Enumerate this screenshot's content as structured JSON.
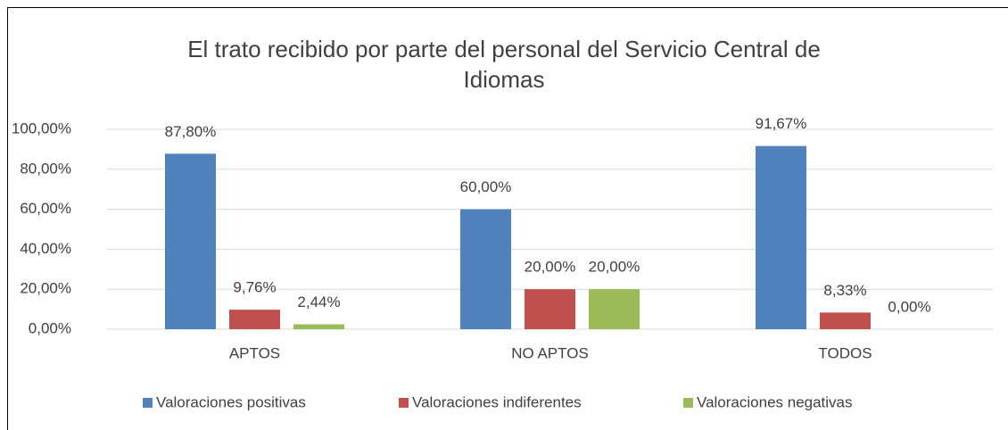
{
  "chart_data": {
    "type": "bar",
    "title": "El trato recibido por parte del personal del Servicio Central de Idiomas",
    "categories": [
      "APTOS",
      "NO APTOS",
      "TODOS"
    ],
    "series": [
      {
        "name": "Valoraciones positivas",
        "color": "#4f81bd",
        "values": [
          87.8,
          60.0,
          91.67
        ],
        "value_labels": [
          "87,80%",
          "60,00%",
          "91,67%"
        ]
      },
      {
        "name": "Valoraciones indiferentes",
        "color": "#c0504d",
        "values": [
          9.76,
          20.0,
          8.33
        ],
        "value_labels": [
          "9,76%",
          "20,00%",
          "8,33%"
        ]
      },
      {
        "name": "Valoraciones negativas",
        "color": "#9bbb59",
        "values": [
          2.44,
          20.0,
          0.0
        ],
        "value_labels": [
          "2,44%",
          "20,00%",
          "0,00%"
        ]
      }
    ],
    "ylim": [
      0,
      100
    ],
    "yticks": [
      {
        "value": 0,
        "label": "0,00%"
      },
      {
        "value": 20,
        "label": "20,00%"
      },
      {
        "value": 40,
        "label": "40,00%"
      },
      {
        "value": 60,
        "label": "60,00%"
      },
      {
        "value": 80,
        "label": "80,00%"
      },
      {
        "value": 100,
        "label": "100,00%"
      }
    ],
    "grid": true,
    "legend": "bottom"
  }
}
